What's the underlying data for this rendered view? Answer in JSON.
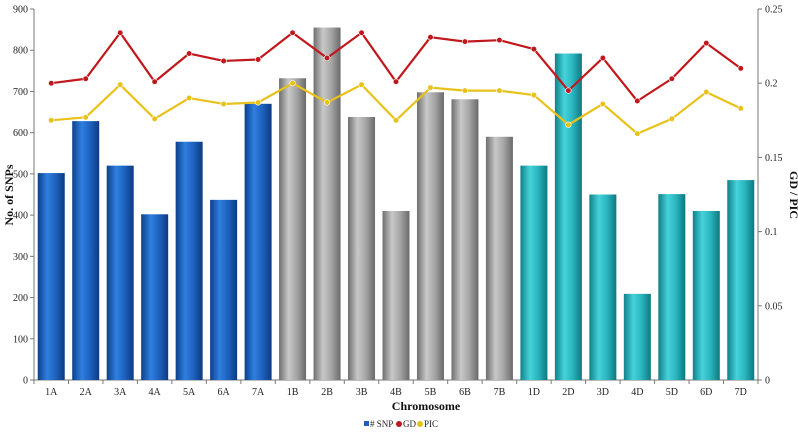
{
  "chart_data": {
    "type": "bar",
    "categories": [
      "1A",
      "2A",
      "3A",
      "4A",
      "5A",
      "6A",
      "7A",
      "1B",
      "2B",
      "3B",
      "4B",
      "5B",
      "6B",
      "7B",
      "1D",
      "2D",
      "3D",
      "4D",
      "5D",
      "6D",
      "7D"
    ],
    "series": [
      {
        "name": "# SNP",
        "type": "bar",
        "axis": "left",
        "values": [
          502,
          628,
          520,
          402,
          578,
          437,
          670,
          732,
          855,
          638,
          410,
          698,
          681,
          590,
          520,
          792,
          450,
          209,
          451,
          410,
          485
        ]
      },
      {
        "name": "GD",
        "type": "line",
        "axis": "right",
        "values": [
          0.2,
          0.203,
          0.234,
          0.201,
          0.22,
          0.215,
          0.216,
          0.234,
          0.217,
          0.234,
          0.201,
          0.231,
          0.228,
          0.229,
          0.223,
          0.195,
          0.217,
          0.188,
          0.203,
          0.227,
          0.21
        ]
      },
      {
        "name": "PIC",
        "type": "line",
        "axis": "right",
        "values": [
          0.175,
          0.177,
          0.199,
          0.176,
          0.19,
          0.186,
          0.187,
          0.2,
          0.187,
          0.199,
          0.175,
          0.197,
          0.195,
          0.195,
          0.192,
          0.172,
          0.186,
          0.166,
          0.176,
          0.194,
          0.183
        ]
      }
    ],
    "group_colors": {
      "A": "#1f5fb8",
      "B": "#9a9a9a",
      "D": "#25b5be"
    },
    "line_colors": {
      "GD": "#c0181c",
      "PIC": "#e8c21a"
    },
    "xlabel": "Chromosome",
    "ylabel": "No. of SNPs",
    "y2label": "GD / PIC",
    "ylim": [
      0,
      900
    ],
    "y2lim": [
      0,
      0.25
    ],
    "yticks": [
      0,
      100,
      200,
      300,
      400,
      500,
      600,
      700,
      800,
      900
    ],
    "y2ticks": [
      "0",
      "0.05",
      "0.1",
      "0.15",
      "0.2",
      "0.25"
    ],
    "legend": [
      {
        "label": "# SNP",
        "marker": "square"
      },
      {
        "label": "GD",
        "marker": "circle"
      },
      {
        "label": "PIC",
        "marker": "circle"
      }
    ],
    "legend_position": "bottom-center",
    "grid": false
  }
}
